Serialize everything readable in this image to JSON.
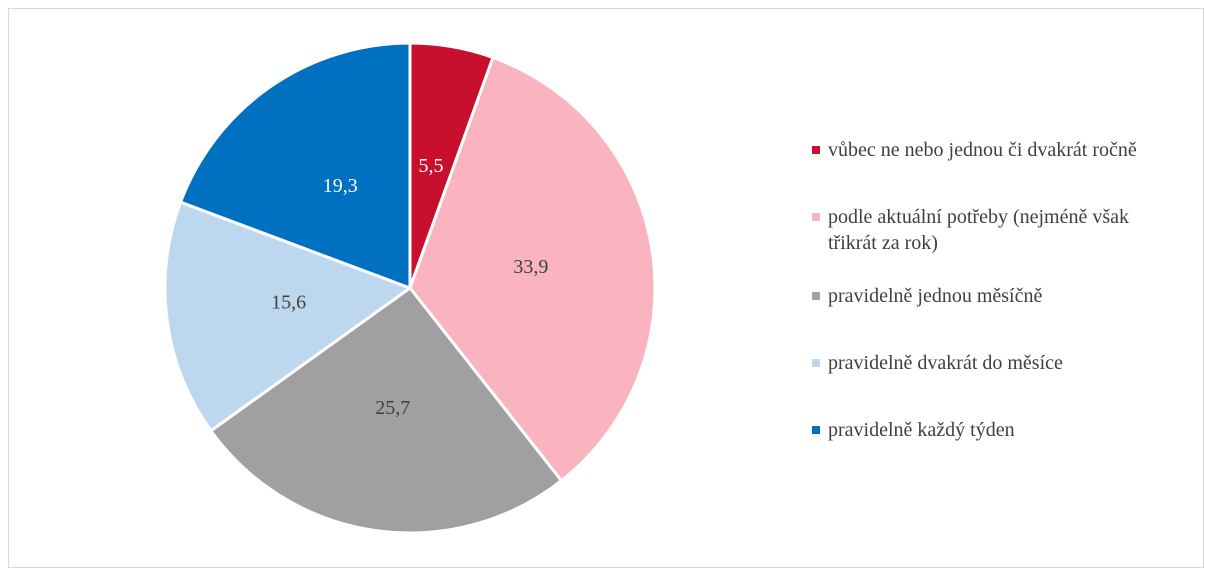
{
  "chart_data": {
    "type": "pie",
    "categories": [
      "vůbec ne nebo jednou či dvakrát ročně",
      "podle aktuální potřeby (nejméně však třikrát za rok)",
      "pravidelně jednou měsíčně",
      "pravidelně dvakrát do měsíce",
      "pravidelně každý týden"
    ],
    "values": [
      5.5,
      33.9,
      25.7,
      15.6,
      19.3
    ],
    "value_labels": [
      "5,5",
      "33,9",
      "25,7",
      "15,6",
      "19,3"
    ],
    "colors": [
      "#c8102e",
      "#f9b4bf",
      "#a0a0a2",
      "#bdd7ee",
      "#0070c0"
    ],
    "legend": "right"
  }
}
